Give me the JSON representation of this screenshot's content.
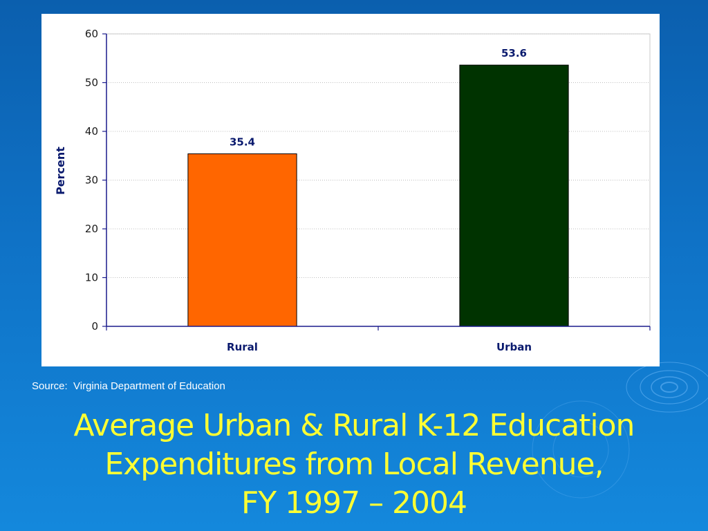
{
  "slide": {
    "source": "Source:  Virginia Department of Education",
    "title_lines": [
      "Average Urban & Rural K-12 Education",
      "Expenditures from Local Revenue,",
      "FY 1997 – 2004"
    ]
  },
  "colors": {
    "background": "#1274c8",
    "title": "#ffff33",
    "rural_bar": "#ff6600",
    "urban_bar": "#003300",
    "axis_text": "#0a1a6e",
    "axis_line": "#1a1a8c"
  },
  "chart_data": {
    "type": "bar",
    "categories": [
      "Rural",
      "Urban"
    ],
    "values": [
      35.4,
      53.6
    ],
    "value_labels": [
      "35.4",
      "53.6"
    ],
    "bar_colors": [
      "#ff6600",
      "#003300"
    ],
    "title": "",
    "xlabel": "",
    "ylabel": "Percent",
    "ylim": [
      0,
      60
    ],
    "yticks": [
      0,
      10,
      20,
      30,
      40,
      50,
      60
    ],
    "grid": true,
    "legend": "none"
  }
}
